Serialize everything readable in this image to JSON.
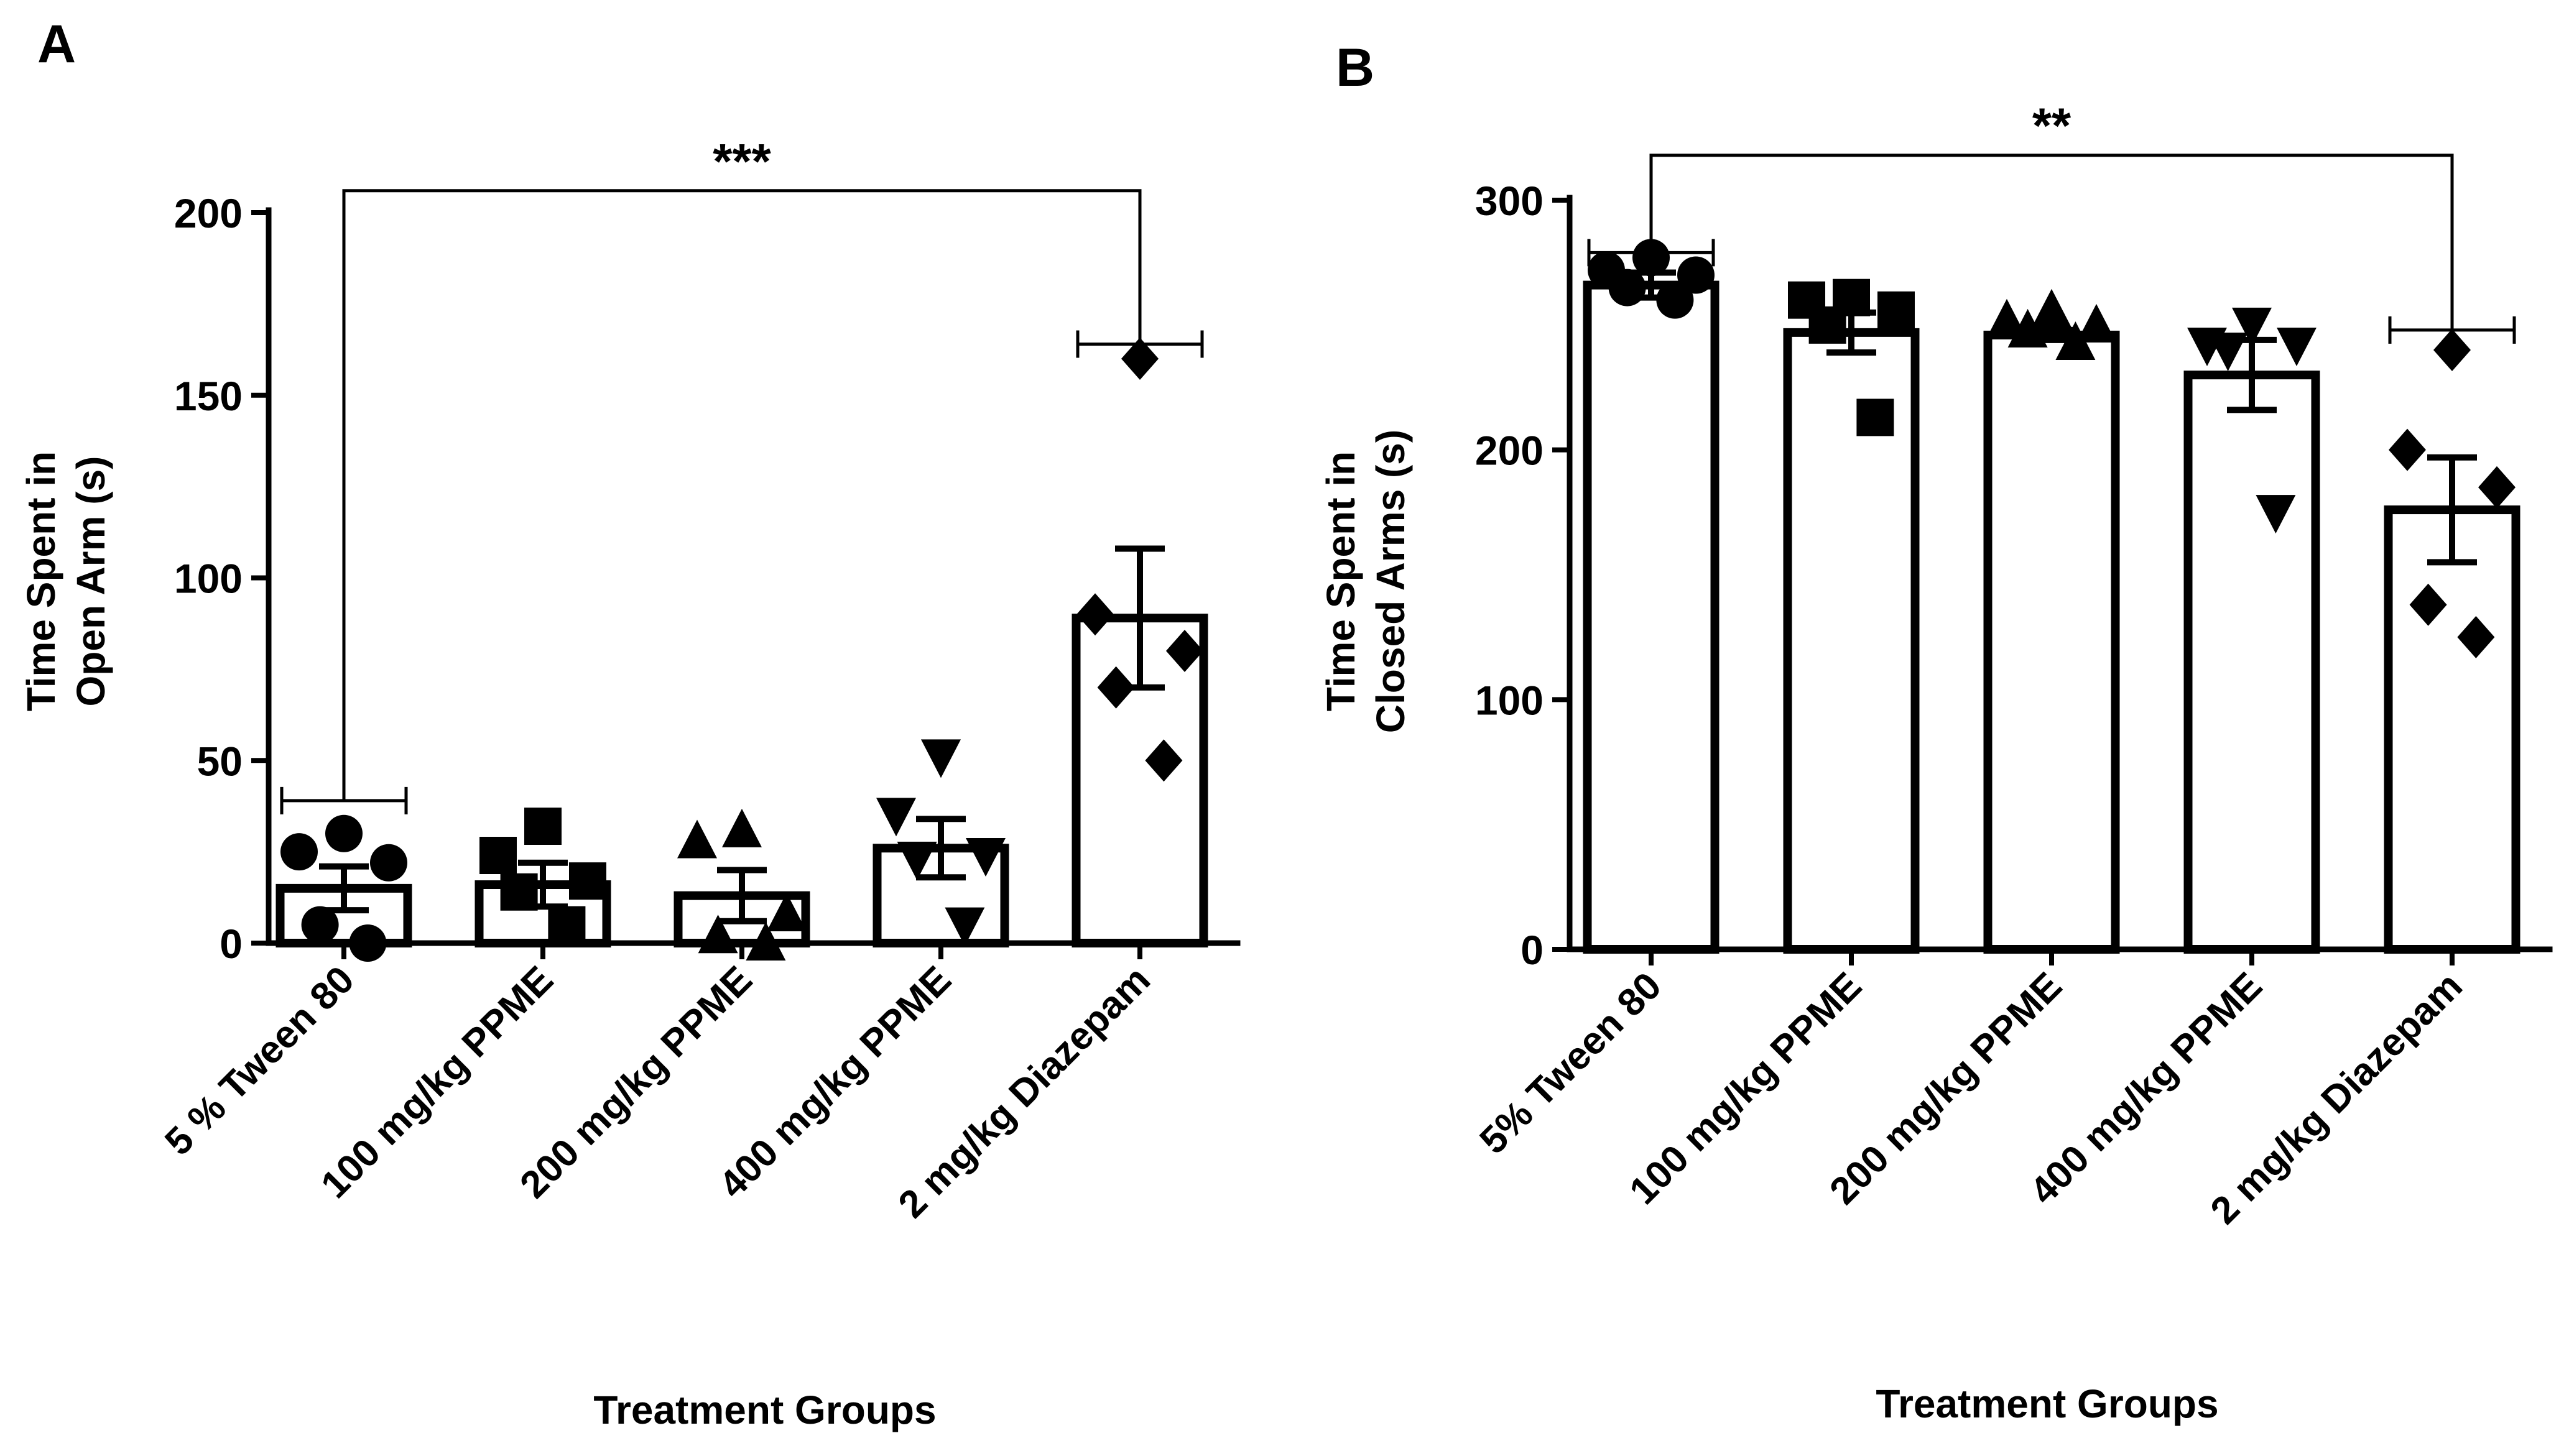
{
  "chart_data": [
    {
      "panel": "A",
      "type": "bar",
      "title": "",
      "xlabel": "Treatment Groups",
      "ylabel_line1": "Time Spent in",
      "ylabel_line2": "Open Arm (s)",
      "ylim": [
        0,
        200
      ],
      "yticks": [
        0,
        50,
        100,
        150,
        200
      ],
      "categories": [
        "5 % Tween 80",
        "100 mg/kg PPME",
        "200 mg/kg PPME",
        "400 mg/kg PPME",
        "2 mg/kg Diazepam"
      ],
      "values": [
        15,
        16,
        13,
        26,
        89
      ],
      "sem": [
        6,
        6,
        7,
        8,
        19
      ],
      "markers": [
        "circle",
        "square",
        "triangle-up",
        "triangle-down",
        "diamond"
      ],
      "points": [
        [
          30,
          25,
          22,
          5,
          0
        ],
        [
          32,
          24,
          17,
          14,
          5
        ],
        [
          31,
          28,
          8,
          2,
          0
        ],
        [
          51,
          35,
          24,
          23,
          5
        ],
        [
          160,
          90,
          80,
          70,
          50
        ]
      ],
      "significance": {
        "label": "***",
        "from": 0,
        "to": 4,
        "level": 206
      }
    },
    {
      "panel": "B",
      "type": "bar",
      "title": "",
      "xlabel": "Treatment Groups",
      "ylabel_line1": "Time Spent in",
      "ylabel_line2": "Closed Arms (s)",
      "ylim": [
        0,
        300
      ],
      "yticks": [
        0,
        100,
        200,
        300
      ],
      "categories": [
        "5% Tween 80",
        "100 mg/kg PPME",
        "200 mg/kg PPME",
        "400 mg/kg PPME",
        "2 mg/kg Diazepam"
      ],
      "values": [
        266,
        247,
        246,
        230,
        176
      ],
      "sem": [
        5,
        8,
        2,
        14,
        21
      ],
      "markers": [
        "circle",
        "square",
        "triangle-up",
        "triangle-down",
        "diamond"
      ],
      "points": [
        [
          277,
          272,
          270,
          265,
          260
        ],
        [
          261,
          260,
          256,
          250,
          213
        ],
        [
          256,
          252,
          250,
          248,
          243
        ],
        [
          250,
          242,
          242,
          240,
          175
        ],
        [
          240,
          200,
          185,
          138,
          125
        ]
      ],
      "significance": {
        "label": "**",
        "from": 0,
        "to": 4,
        "level": 318
      }
    }
  ]
}
